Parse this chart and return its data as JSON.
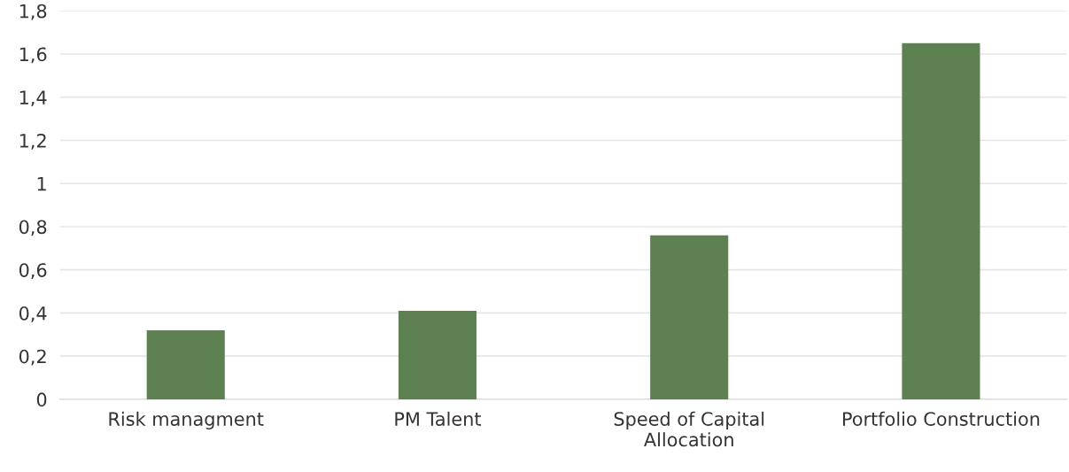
{
  "chart_data": {
    "type": "bar",
    "categories": [
      "Risk managment",
      "PM Talent",
      "Speed of Capital\nAllocation",
      "Portfolio Construction"
    ],
    "values": [
      0.32,
      0.41,
      0.76,
      1.65
    ],
    "color": "#5d8151",
    "ylim": [
      0,
      1.8
    ],
    "yticks": [
      0,
      {
        "value": 0.2,
        "label": "0,2"
      },
      {
        "value": 0.4,
        "label": "0,4"
      },
      {
        "value": 0.6,
        "label": "0,6"
      },
      {
        "value": 0.8,
        "label": "0,8"
      },
      1,
      {
        "value": 1.2,
        "label": "1,2"
      },
      {
        "value": 1.4,
        "label": "1,4"
      },
      {
        "value": 1.6,
        "label": "1,6"
      },
      {
        "value": 1.8,
        "label": "1,8"
      }
    ],
    "grid": "y",
    "legend": false
  }
}
